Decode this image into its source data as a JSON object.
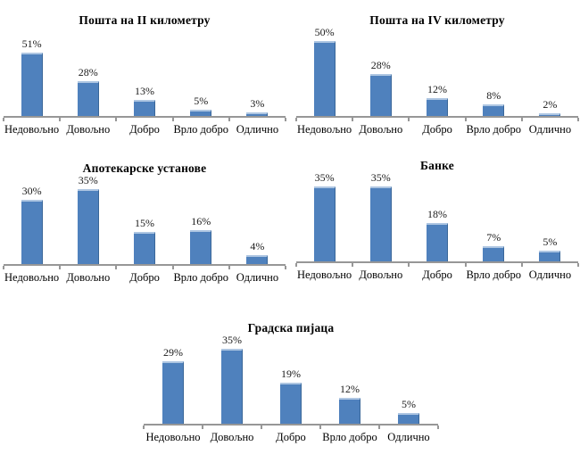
{
  "page": {
    "background": "#ffffff"
  },
  "colors": {
    "bar": "#4f81bd",
    "bar_top_highlight": "#aec6e2",
    "bar_right_shade": "#3a6799",
    "axis": "#979797",
    "text": "#000000"
  },
  "unit": "%",
  "chart_data": [
    {
      "type": "bar",
      "title": "Пошта на II километру",
      "categories": [
        "Недовољно",
        "Довољно",
        "Добро",
        "Врло добро",
        "Одлично"
      ],
      "values": [
        51,
        28,
        13,
        5,
        3
      ],
      "labels": [
        "51%",
        "28%",
        "13%",
        "5%",
        "3%"
      ],
      "xlabel": "",
      "ylabel": "",
      "ylim": [
        0,
        60
      ],
      "grid": false,
      "legend": "none",
      "data_labels": true
    },
    {
      "type": "bar",
      "title": "Пошта на IV километру",
      "categories": [
        "Недовољно",
        "Довољно",
        "Добро",
        "Врло добро",
        "Одлично"
      ],
      "values": [
        50,
        28,
        12,
        8,
        2
      ],
      "labels": [
        "50%",
        "28%",
        "12%",
        "8%",
        "2%"
      ],
      "xlabel": "",
      "ylabel": "",
      "ylim": [
        0,
        50
      ],
      "grid": false,
      "legend": "none",
      "data_labels": true
    },
    {
      "type": "bar",
      "title": "Апотекарске установе",
      "categories": [
        "Недовољно",
        "Довољно",
        "Добро",
        "Врло добро",
        "Одлично"
      ],
      "values": [
        30,
        35,
        15,
        16,
        4
      ],
      "labels": [
        "30%",
        "35%",
        "15%",
        "16%",
        "4%"
      ],
      "xlabel": "",
      "ylabel": "",
      "ylim": [
        0,
        35
      ],
      "grid": false,
      "legend": "none",
      "data_labels": true
    },
    {
      "type": "bar",
      "title": "Банке",
      "categories": [
        "Недовољно",
        "Довољно",
        "Добро",
        "Врло добро",
        "Одлично"
      ],
      "values": [
        35,
        35,
        18,
        7,
        5
      ],
      "labels": [
        "35%",
        "35%",
        "18%",
        "7%",
        "5%"
      ],
      "xlabel": "",
      "ylabel": "",
      "ylim": [
        0,
        35
      ],
      "grid": false,
      "legend": "none",
      "data_labels": true
    },
    {
      "type": "bar",
      "title": "Градска пијаца",
      "categories": [
        "Недовољно",
        "Довољно",
        "Добро",
        "Врло добро",
        "Одлично"
      ],
      "values": [
        29,
        35,
        19,
        12,
        5
      ],
      "labels": [
        "29%",
        "35%",
        "19%",
        "12%",
        "5%"
      ],
      "xlabel": "",
      "ylabel": "",
      "ylim": [
        0,
        35
      ],
      "grid": false,
      "legend": "none",
      "data_labels": true
    }
  ]
}
